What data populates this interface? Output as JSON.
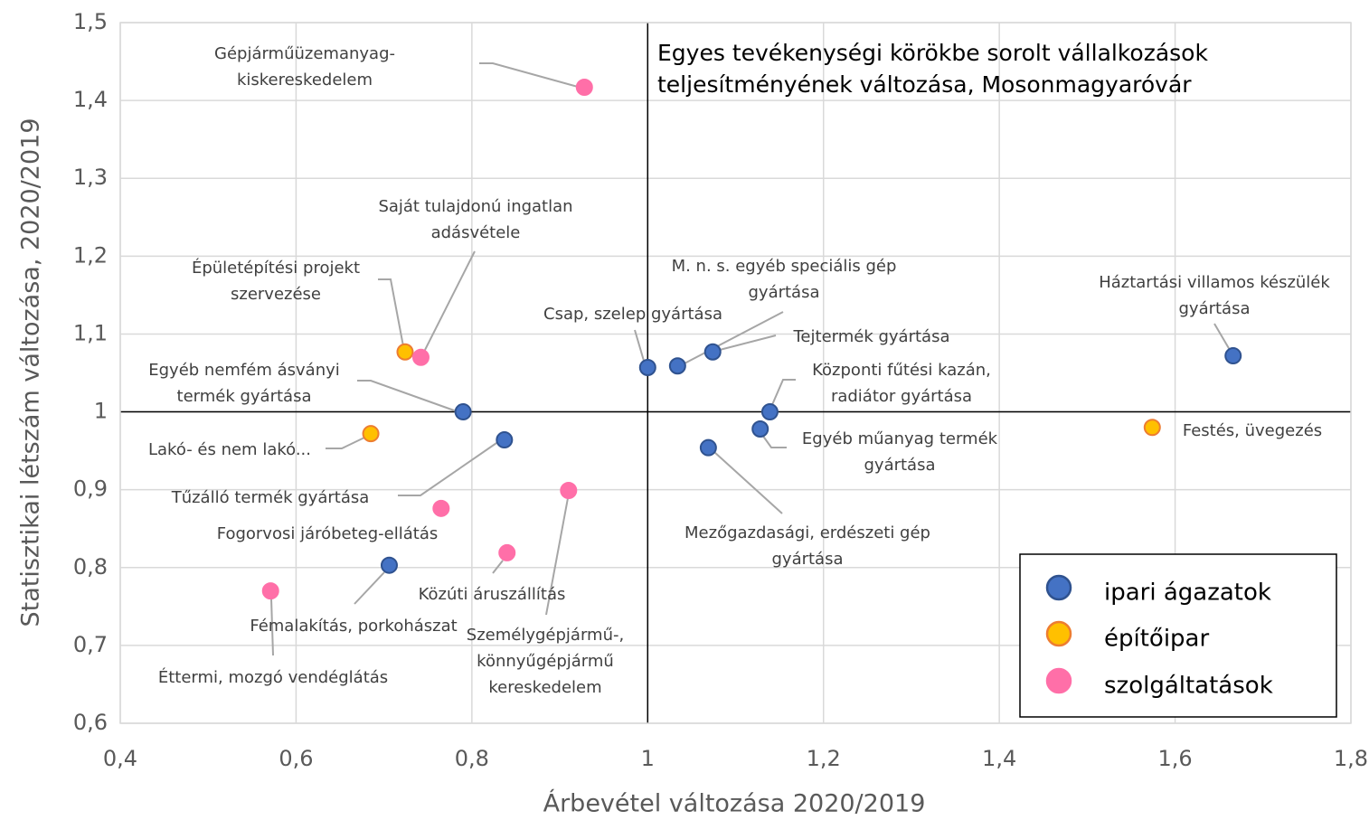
{
  "chart_data": {
    "type": "scatter",
    "title": "Egyes tevékenységi körökbe sorolt vállalkozások\nteljesítményének változása, Mosonmagyaróvár",
    "x_label": "Árbevétel változása 2020/2019",
    "y_label": "Statisztikai létszám  változása, 2020/2019",
    "xlim": [
      0.4,
      1.8
    ],
    "xticks": [
      {
        "value": 0.4,
        "label": "0,4"
      },
      {
        "value": 0.6,
        "label": "0,6"
      },
      {
        "value": 0.8,
        "label": "0,8"
      },
      1,
      {
        "value": 1.2,
        "label": "1,2"
      },
      {
        "value": 1.4,
        "label": "1,4"
      },
      {
        "value": 1.6,
        "label": "1,6"
      },
      {
        "value": 1.8,
        "label": "1,8"
      }
    ],
    "ylim": [
      0.6,
      1.5
    ],
    "yticks": [
      {
        "value": 0.6,
        "label": "0,6"
      },
      {
        "value": 0.7,
        "label": "0,7"
      },
      {
        "value": 0.8,
        "label": "0,8"
      },
      {
        "value": 0.9,
        "label": "0,9"
      },
      1,
      {
        "value": 1.1,
        "label": "1,1"
      },
      {
        "value": 1.2,
        "label": "1,2"
      },
      {
        "value": 1.3,
        "label": "1,3"
      },
      {
        "value": 1.4,
        "label": "1,4"
      },
      {
        "value": 1.5,
        "label": "1,5"
      }
    ],
    "grid": true,
    "reference_x": 1,
    "reference_y": 1,
    "legend": "bottom-right",
    "series": [
      {
        "name": "ipari ágazatok",
        "color": "#4472c4",
        "edge": "#2f528f",
        "x": [
          1.0,
          1.034,
          1.074,
          1.139,
          1.128,
          1.069,
          1.666,
          0.79,
          0.837,
          0.706
        ],
        "values": [
          1.057,
          1.059,
          1.077,
          1.0,
          0.978,
          0.954,
          1.072,
          1.0,
          0.964,
          0.803
        ],
        "labels": [
          "Csap, szelep gyártása",
          "M. n. s. egyéb speciális gép\ngyártása",
          "Tejtermék gyártása",
          "Központi fűtési kazán,\nradiátor gyártása",
          "Egyéb műanyag termék\ngyártása",
          "Mezőgazdasági, erdészeti gép\ngyártása",
          "Háztartási villamos készülék\ngyártása",
          "Egyéb nemfém ásványi\ntermék gyártása",
          "Tűzálló termék gyártása",
          "Fémalakítás, porkohászat"
        ]
      },
      {
        "name": "építőipar",
        "color": "#ffc000",
        "edge": "#ed7d31",
        "x": [
          0.724,
          0.685,
          1.574
        ],
        "values": [
          1.077,
          0.972,
          0.98
        ],
        "labels": [
          "Épületépítési projekt\nszervezése",
          "Lakó- és nem lakó...",
          "Festés, üvegezés"
        ]
      },
      {
        "name": "szolgáltatások",
        "color": "#ff6fa8",
        "edge": "#ff6fa8",
        "x": [
          0.928,
          0.742,
          0.765,
          0.84,
          0.91,
          0.571
        ],
        "values": [
          1.417,
          1.07,
          0.876,
          0.819,
          0.899,
          0.77
        ],
        "labels": [
          "Gépjárműüzemanyag-\nkiskereskedelem",
          "Saját tulajdonú ingatlan\nadásvétele",
          "Fogorvosi járóbeteg-ellátás",
          "Közúti áruszállítás",
          "Személygépjármű-,\nkönnyűgépjármű\nkereskedelem",
          "Éttermi, mozgó vendéglátás"
        ]
      }
    ]
  }
}
